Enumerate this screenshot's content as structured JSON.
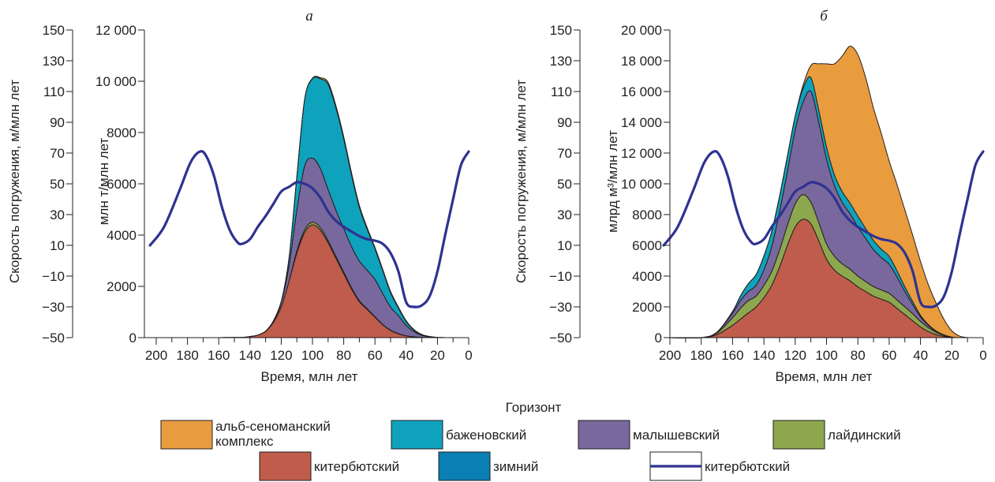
{
  "legend": {
    "title": "Горизонт",
    "items": [
      {
        "label": "альб-сеноманский",
        "label2": "комплекс",
        "color": "#e99c3e",
        "kind": "area"
      },
      {
        "label": "баженовский",
        "color": "#0fa2bd",
        "kind": "area"
      },
      {
        "label": "малышевский",
        "color": "#79689d",
        "kind": "area"
      },
      {
        "label": "лайдинский",
        "color": "#8da74f",
        "kind": "area"
      },
      {
        "label": "китербютский",
        "color": "#bf5c4b",
        "kind": "area"
      },
      {
        "label": "зимний",
        "color": "#0a7fb3",
        "kind": "area"
      },
      {
        "label": "китербютский",
        "color": "#2f3290",
        "kind": "line"
      }
    ]
  },
  "chart_data": [
    {
      "type": "area",
      "panel": "а",
      "xlabel": "Время, млн лет",
      "ylabel": "млн т/млн лет",
      "y2label": "Скорость погружения, м/млн лет",
      "xlim": [
        200,
        0
      ],
      "ylim": [
        0,
        12000
      ],
      "y2lim": [
        -50,
        150
      ],
      "x_ticks": [
        200,
        180,
        160,
        140,
        120,
        100,
        80,
        60,
        40,
        20,
        0
      ],
      "y_ticks": [
        "0",
        "2000",
        "4000",
        "6000",
        "8000",
        "10 000",
        "12 000"
      ],
      "y_tick_values": [
        0,
        2000,
        4000,
        6000,
        8000,
        10000,
        12000
      ],
      "y2_ticks": [
        "−50",
        "−30",
        "−10",
        "10",
        "30",
        "50",
        "70",
        "90",
        "110",
        "130",
        "150"
      ],
      "y2_tick_values": [
        -50,
        -30,
        -10,
        10,
        30,
        50,
        70,
        90,
        110,
        130,
        150
      ],
      "x": [
        200,
        180,
        160,
        145,
        140,
        135,
        130,
        125,
        120,
        115,
        110,
        105,
        100,
        95,
        90,
        85,
        80,
        75,
        70,
        65,
        60,
        55,
        50,
        45,
        40,
        35,
        30,
        25,
        20,
        15,
        10
      ],
      "series": [
        {
          "name": "китербютский",
          "color": "#bf5c4b",
          "values": [
            0,
            0,
            0,
            10,
            40,
            100,
            250,
            600,
            1200,
            2200,
            3300,
            4100,
            4400,
            4200,
            3700,
            3100,
            2500,
            1900,
            1400,
            1100,
            800,
            500,
            280,
            150,
            70,
            30,
            10,
            5,
            0,
            0,
            0
          ]
        },
        {
          "name": "лайдинский",
          "color": "#8da74f",
          "values": [
            0,
            0,
            0,
            0,
            0,
            0,
            0,
            0,
            0,
            0,
            80,
            100,
            100,
            100,
            80,
            70,
            60,
            50,
            40,
            30,
            20,
            15,
            10,
            8,
            5,
            3,
            2,
            0,
            0,
            0,
            0
          ]
        },
        {
          "name": "малышевский",
          "color": "#79689d",
          "values": [
            0,
            0,
            0,
            0,
            0,
            0,
            0,
            50,
            200,
            600,
            1600,
            2500,
            2500,
            2300,
            2000,
            1800,
            1700,
            1600,
            1550,
            1500,
            1450,
            1200,
            900,
            700,
            400,
            200,
            80,
            30,
            10,
            0,
            0
          ]
        },
        {
          "name": "баженовский",
          "color": "#0fa2bd",
          "values": [
            0,
            0,
            0,
            0,
            0,
            0,
            0,
            0,
            0,
            300,
            1300,
            2600,
            3100,
            3500,
            4100,
            4000,
            3500,
            2800,
            2100,
            1600,
            1200,
            900,
            560,
            300,
            150,
            60,
            20,
            5,
            0,
            0,
            0
          ]
        },
        {
          "name": "альб-сеноманский комплекс",
          "color": "#e99c3e",
          "values": [
            0,
            0,
            0,
            0,
            0,
            0,
            0,
            0,
            0,
            0,
            0,
            0,
            20,
            40,
            80,
            80,
            80,
            80,
            70,
            60,
            50,
            50,
            50,
            40,
            30,
            20,
            10,
            5,
            0,
            0,
            0
          ]
        }
      ],
      "line": {
        "name": "китербютский",
        "color": "#2f3290",
        "x": [
          204,
          195,
          185,
          178,
          172,
          168,
          163,
          158,
          153,
          148,
          145,
          140,
          135,
          130,
          125,
          120,
          115,
          110,
          105,
          100,
          95,
          90,
          85,
          80,
          75,
          70,
          65,
          60,
          55,
          50,
          45,
          40,
          35,
          30,
          25,
          20,
          15,
          10,
          5,
          0
        ],
        "values": [
          10,
          22,
          46,
          64,
          71,
          68,
          55,
          35,
          20,
          12,
          11,
          14,
          22,
          29,
          37,
          45,
          48,
          51,
          50,
          47,
          41,
          32,
          26,
          22,
          19,
          16,
          14,
          13,
          11,
          5,
          -7,
          -27,
          -30,
          -29,
          -23,
          -7,
          17,
          40,
          62,
          71
        ]
      }
    },
    {
      "type": "area",
      "panel": "б",
      "xlabel": "Время, млн лет",
      "ylabel": "млрд м³/млн лет",
      "y2label": "Скорость погружения, м/млн лет",
      "xlim": [
        200,
        0
      ],
      "ylim": [
        0,
        20000
      ],
      "y2lim": [
        -50,
        150
      ],
      "x_ticks": [
        200,
        180,
        160,
        140,
        120,
        100,
        80,
        60,
        40,
        20,
        0
      ],
      "y_ticks": [
        "0",
        "2000",
        "4000",
        "6000",
        "8000",
        "10 000",
        "12 000",
        "14 000",
        "16 000",
        "18 000",
        "20 000"
      ],
      "y_tick_values": [
        0,
        2000,
        4000,
        6000,
        8000,
        10000,
        12000,
        14000,
        16000,
        18000,
        20000
      ],
      "y2_ticks": [
        "−50",
        "−30",
        "−10",
        "10",
        "30",
        "50",
        "70",
        "90",
        "110",
        "130",
        "150"
      ],
      "y2_tick_values": [
        -50,
        -30,
        -10,
        10,
        30,
        50,
        70,
        90,
        110,
        130,
        150
      ],
      "x": [
        200,
        180,
        170,
        160,
        155,
        150,
        145,
        140,
        135,
        130,
        125,
        120,
        115,
        110,
        105,
        100,
        95,
        90,
        85,
        80,
        75,
        70,
        65,
        60,
        55,
        50,
        45,
        40,
        35,
        30,
        25,
        20,
        15,
        10
      ],
      "series": [
        {
          "name": "китербютский",
          "color": "#bf5c4b",
          "values": [
            0,
            0,
            200,
            800,
            1200,
            1600,
            2000,
            2600,
            3400,
            4600,
            6000,
            7200,
            7700,
            7400,
            6300,
            5100,
            4400,
            4000,
            3700,
            3300,
            3000,
            2700,
            2500,
            2300,
            1900,
            1500,
            1100,
            700,
            400,
            200,
            80,
            20,
            0,
            0
          ]
        },
        {
          "name": "лайдинский",
          "color": "#8da74f",
          "values": [
            0,
            0,
            100,
            500,
            700,
            800,
            700,
            800,
            900,
            1100,
            1300,
            1500,
            1600,
            1400,
            1200,
            1000,
            900,
            800,
            750,
            700,
            650,
            620,
            600,
            580,
            550,
            500,
            450,
            350,
            250,
            150,
            70,
            20,
            0,
            0
          ]
        },
        {
          "name": "малышевский",
          "color": "#79689d",
          "values": [
            0,
            0,
            50,
            300,
            500,
            600,
            700,
            1000,
            1600,
            2500,
            3500,
            4800,
            6000,
            7200,
            6500,
            5500,
            4600,
            4000,
            3600,
            3200,
            2800,
            2400,
            2100,
            1900,
            1500,
            1000,
            600,
            300,
            150,
            60,
            20,
            0,
            0,
            0
          ]
        },
        {
          "name": "баженовский",
          "color": "#0fa2bd",
          "values": [
            0,
            0,
            0,
            100,
            300,
            500,
            700,
            900,
            1000,
            1000,
            1000,
            900,
            900,
            900,
            800,
            800,
            700,
            700,
            700,
            700,
            650,
            600,
            550,
            500,
            400,
            300,
            200,
            100,
            50,
            20,
            10,
            0,
            0,
            0
          ]
        },
        {
          "name": "альб-сеноманский комплекс",
          "color": "#e99c3e",
          "values": [
            0,
            0,
            0,
            0,
            0,
            0,
            0,
            0,
            0,
            0,
            0,
            0,
            200,
            800,
            3000,
            5400,
            7200,
            8800,
            10200,
            10500,
            9800,
            8600,
            7500,
            6200,
            5600,
            5000,
            4300,
            3500,
            2600,
            1800,
            1000,
            400,
            100,
            0
          ]
        },
        {
          "name": "зимний",
          "color": "#0a7fb3",
          "values": [
            0,
            0,
            0,
            0,
            0,
            0,
            0,
            0,
            0,
            0,
            0,
            0,
            0,
            0,
            0,
            0,
            0,
            0,
            0,
            0,
            0,
            0,
            0,
            0,
            0,
            0,
            0,
            0,
            0,
            0,
            0,
            0,
            0,
            0
          ]
        }
      ],
      "line": {
        "name": "китербютский",
        "color": "#2f3290",
        "x": [
          204,
          195,
          185,
          178,
          172,
          168,
          163,
          158,
          153,
          148,
          145,
          140,
          135,
          130,
          125,
          120,
          115,
          110,
          105,
          100,
          95,
          90,
          85,
          80,
          75,
          70,
          65,
          60,
          55,
          50,
          45,
          40,
          35,
          30,
          25,
          20,
          15,
          10,
          5,
          0
        ],
        "values": [
          10,
          22,
          46,
          64,
          71,
          68,
          55,
          35,
          20,
          12,
          11,
          14,
          22,
          29,
          37,
          45,
          48,
          51,
          50,
          47,
          41,
          32,
          26,
          22,
          19,
          16,
          14,
          13,
          11,
          5,
          -7,
          -27,
          -30,
          -29,
          -23,
          -7,
          17,
          40,
          62,
          71
        ]
      }
    }
  ]
}
